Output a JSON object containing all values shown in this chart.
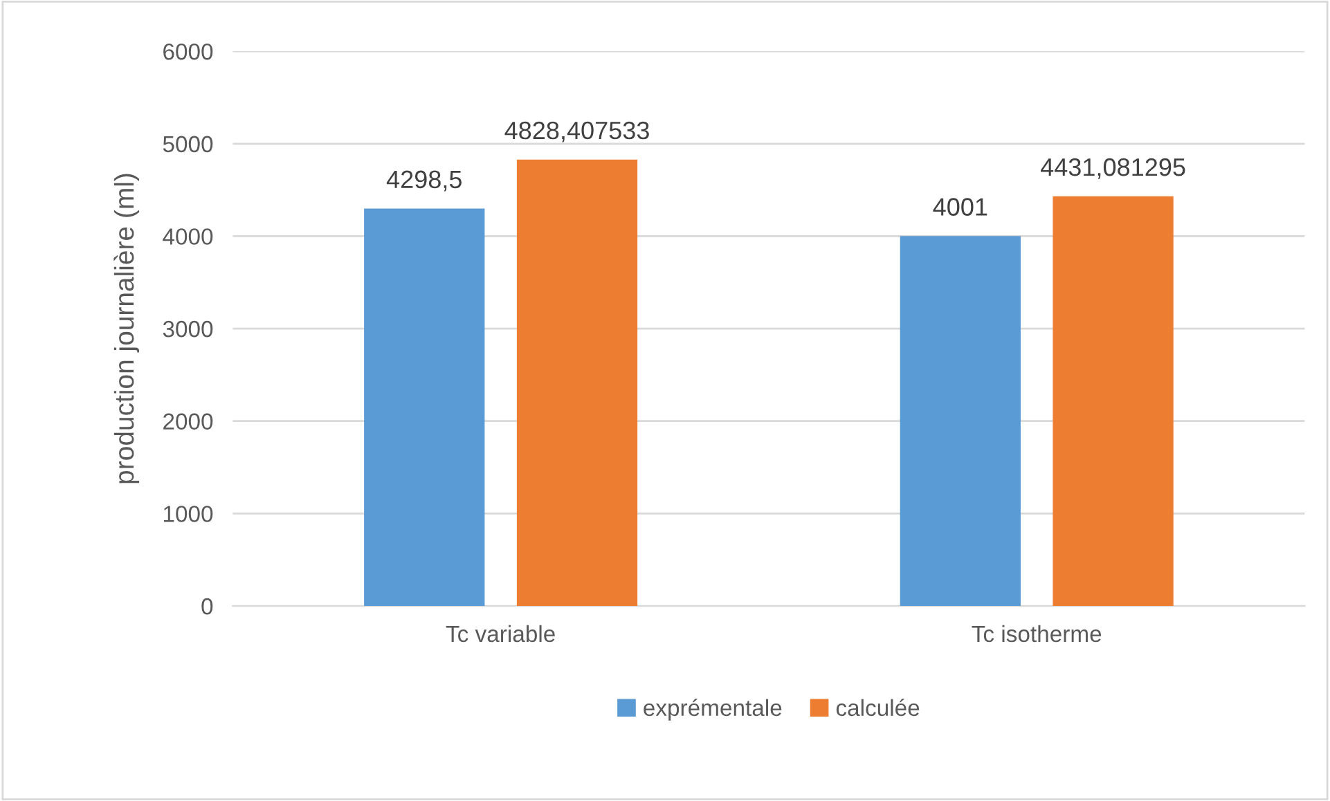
{
  "chart_data": {
    "type": "bar",
    "ylabel": "production journalière (ml)",
    "categories": [
      "Tc variable",
      "Tc isotherme"
    ],
    "series": [
      {
        "name": "exprémentale",
        "color": "#5b9bd5",
        "values": [
          4298.5,
          4001
        ],
        "value_labels": [
          "4298,5",
          "4001"
        ]
      },
      {
        "name": "calculée",
        "color": "#ed7d31",
        "values": [
          4828.407533,
          4431.081295
        ],
        "value_labels": [
          "4828,407533",
          "4431,081295"
        ]
      }
    ],
    "ylim": [
      0,
      6000
    ],
    "yticks": [
      0,
      1000,
      2000,
      3000,
      4000,
      5000,
      6000
    ],
    "grid": "y",
    "legend": "bottom"
  }
}
